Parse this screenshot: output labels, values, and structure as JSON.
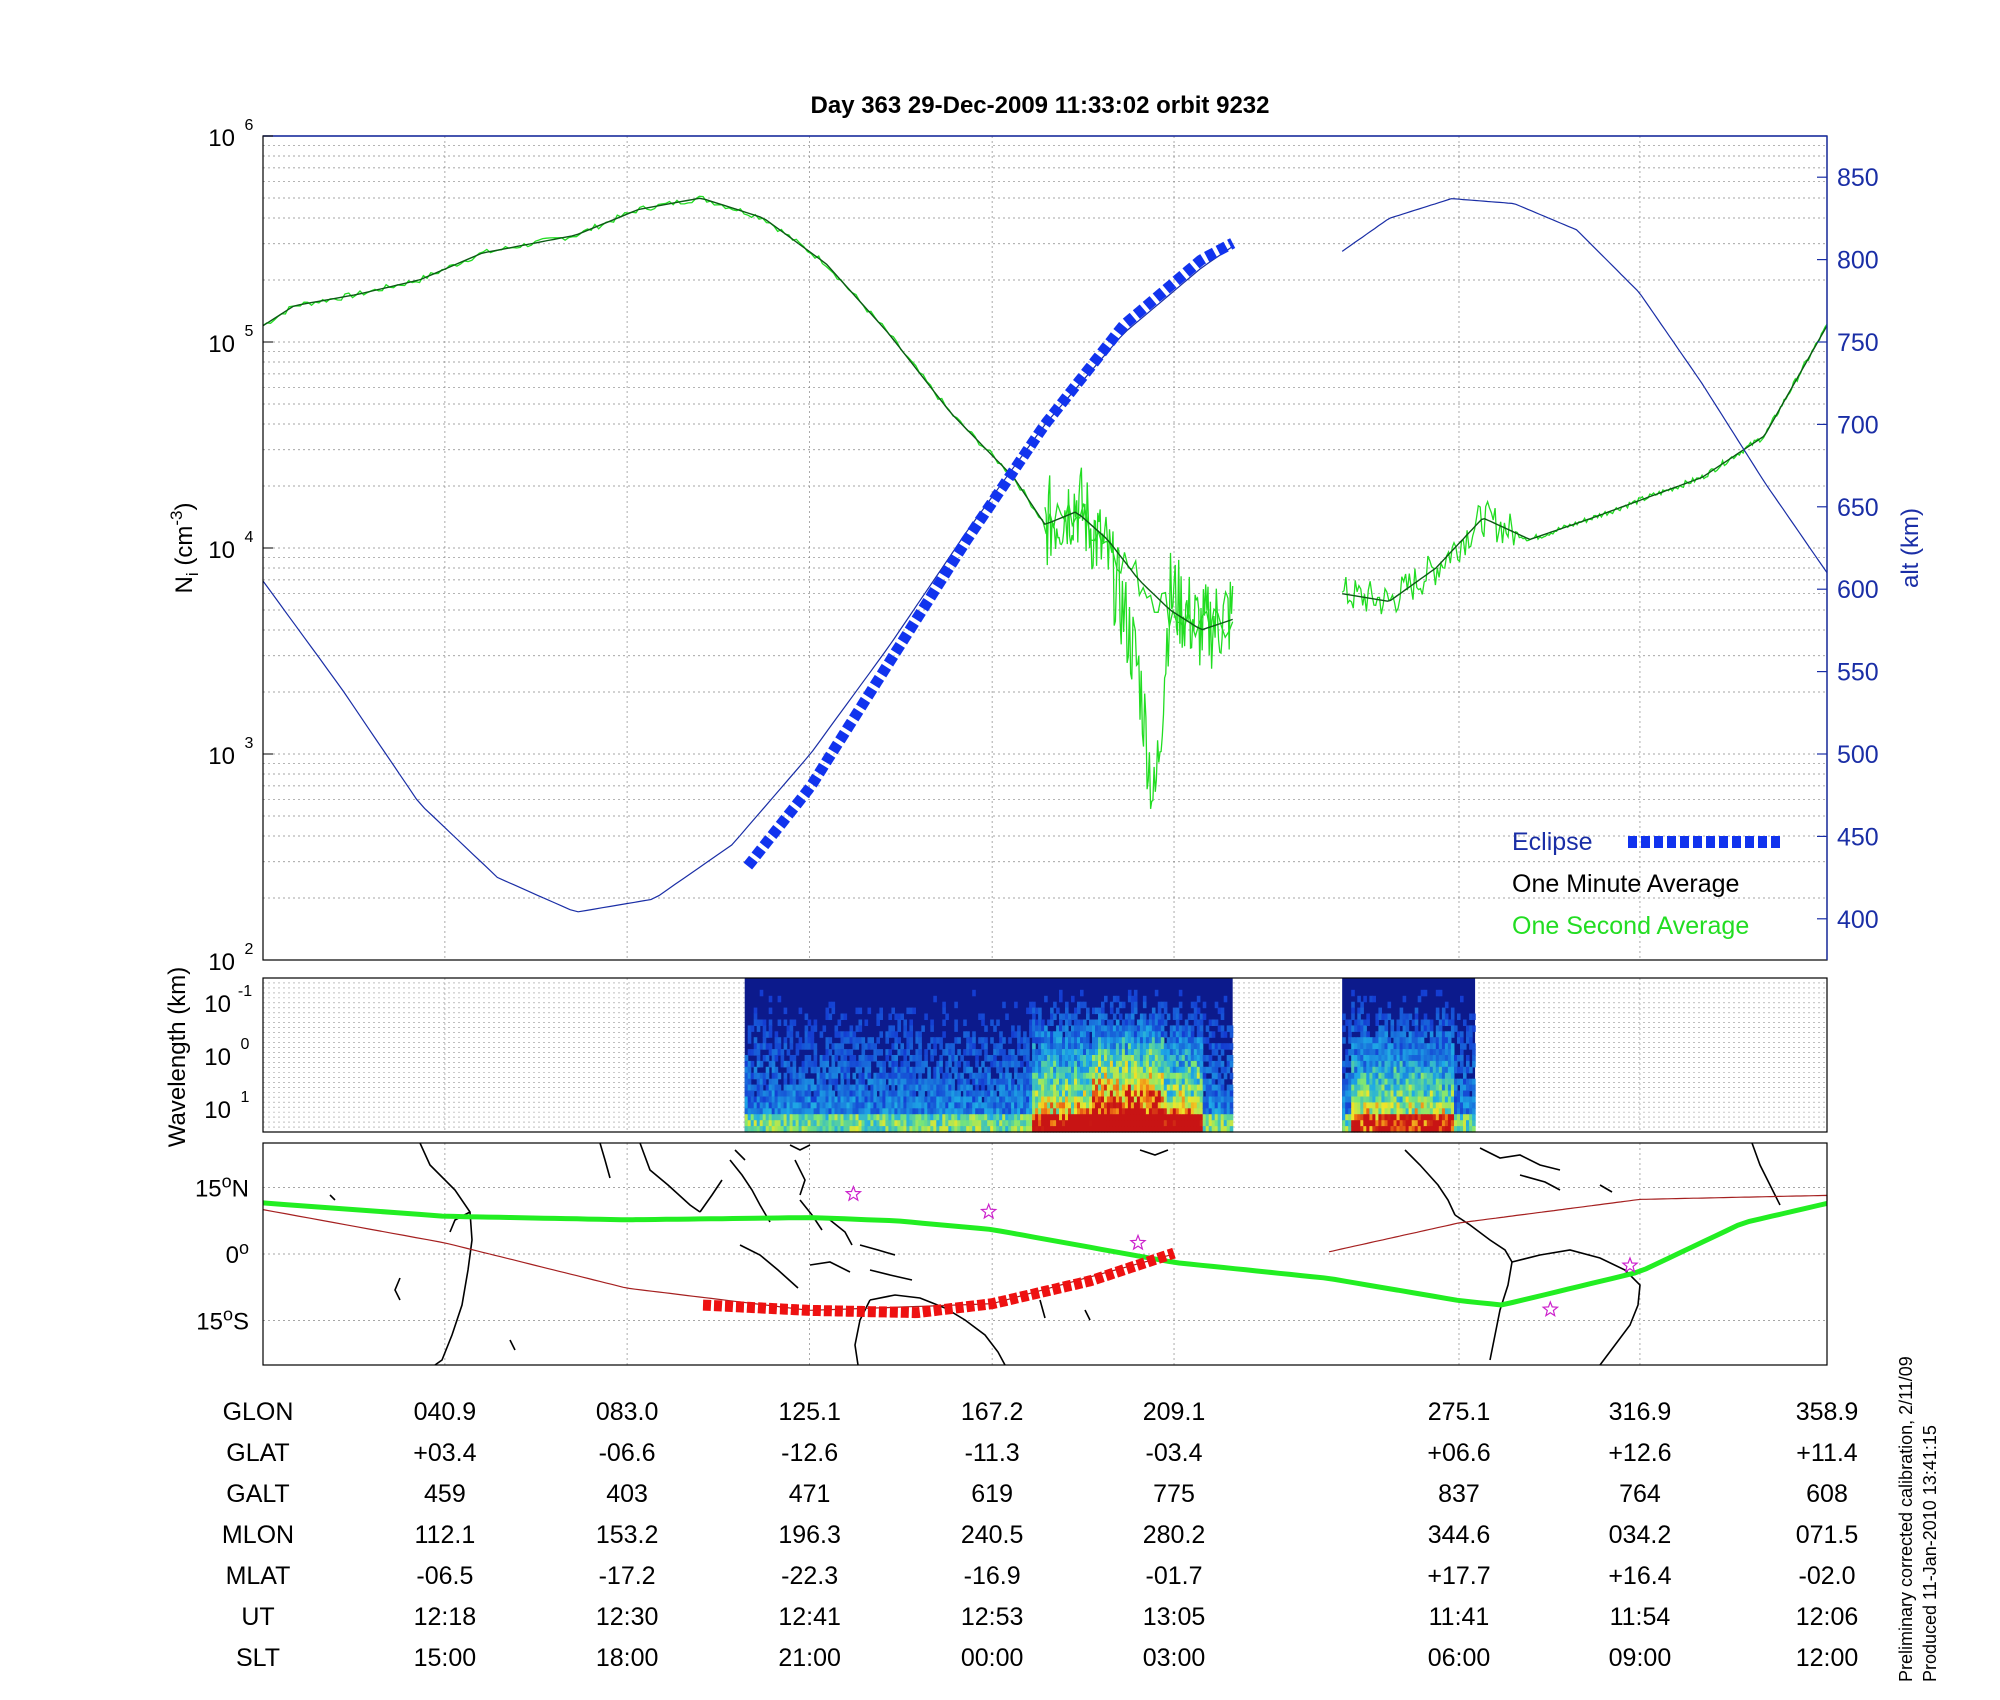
{
  "title": "Day 363  29-Dec-2009 11:33:02   orbit 9232",
  "colors": {
    "density_1s": "#22dd22",
    "density_1min": "#0b5a14",
    "altitude": "#1a2ea6",
    "eclipse": "#1133ee",
    "ground_track": "#22ee22",
    "magnetic_equator": "#a52020",
    "map_eclipse": "#ee1111",
    "stars": "#cc22cc",
    "axis_blue": "#1a2ea6"
  },
  "panel_top": {
    "ylabel_left": "N",
    "ylabel_left_sub": "i",
    "ylabel_left_unit": " (cm",
    "ylabel_left_exp": "-3",
    "ylabel_left_close": ")",
    "ylabel_right": "alt (km)",
    "left_ticks": [
      {
        "base": "10",
        "exp": "2",
        "value": 100
      },
      {
        "base": "10",
        "exp": "3",
        "value": 1000
      },
      {
        "base": "10",
        "exp": "4",
        "value": 10000
      },
      {
        "base": "10",
        "exp": "5",
        "value": 100000
      },
      {
        "base": "10",
        "exp": "6",
        "value": 1000000
      }
    ],
    "right_ticks": [
      "400",
      "450",
      "500",
      "550",
      "600",
      "650",
      "700",
      "750",
      "800",
      "850"
    ],
    "right_range": [
      375,
      875
    ],
    "legend": {
      "eclipse": "Eclipse",
      "one_minute": "One Minute Average",
      "one_second": "One Second Average"
    }
  },
  "panel_mid": {
    "ylabel": "Wavelength (km)",
    "ticks": [
      {
        "base": "10",
        "exp": "-1"
      },
      {
        "base": "10",
        "exp": "0"
      },
      {
        "base": "10",
        "exp": "1"
      }
    ]
  },
  "panel_map": {
    "ticks": [
      {
        "deg": "15",
        "hemi": "N",
        "lat": 15
      },
      {
        "deg": "0",
        "hemi": "",
        "lat": 0
      },
      {
        "deg": "15",
        "hemi": "S",
        "lat": -15
      }
    ],
    "lat_range": [
      -25,
      25
    ],
    "stars_lon": [
      135.2,
      166.4,
      200.8,
      296.2,
      314.6
    ],
    "stars_lat": [
      13.5,
      9.5,
      2.5,
      -12.5,
      -2.6
    ]
  },
  "chart_data": [
    {
      "type": "line",
      "panel": "ion density and altitude",
      "x_axis": "GLON",
      "x_labels": [
        "040.9",
        "083.0",
        "125.1",
        "167.2",
        "209.1",
        "275.1",
        "316.9",
        "358.9"
      ],
      "y_scale_left": "log",
      "ylim_left": [
        100,
        1000000
      ],
      "ylim_right": [
        375,
        875
      ],
      "series": [
        {
          "name": "One Minute Average",
          "axis": "left",
          "x": [
            0.0,
            0.02,
            0.06,
            0.1,
            0.14,
            0.2,
            0.24,
            0.28,
            0.32,
            0.36,
            0.4,
            0.44,
            0.48,
            0.5,
            0.52,
            0.54,
            0.56,
            0.58,
            0.6,
            0.62
          ],
          "y": [
            120000,
            150000,
            170000,
            200000,
            270000,
            330000,
            440000,
            500000,
            400000,
            240000,
            110000,
            45000,
            22000,
            13000,
            15000,
            11000,
            7000,
            5000,
            4000,
            4500
          ]
        },
        {
          "name": "One Minute Average",
          "axis": "left",
          "x": [
            0.69,
            0.72,
            0.75,
            0.78,
            0.81,
            0.85,
            0.88,
            0.92,
            0.96,
            1.0
          ],
          "y": [
            6000,
            5500,
            8000,
            14000,
            11000,
            14000,
            17000,
            22000,
            35000,
            120000
          ]
        },
        {
          "name": "One Second Average",
          "axis": "left",
          "x": [
            0.5,
            0.52,
            0.54,
            0.55,
            0.56,
            0.57,
            0.58,
            0.6,
            0.62
          ],
          "y": [
            13000,
            17000,
            9000,
            5000,
            2500,
            550,
            6000,
            4000,
            4800
          ]
        },
        {
          "name": "altitude",
          "axis": "right",
          "x": [
            0.0,
            0.05,
            0.1,
            0.15,
            0.2,
            0.25,
            0.3,
            0.35,
            0.4,
            0.45,
            0.5,
            0.55,
            0.6,
            0.62
          ],
          "y": [
            605,
            540,
            470,
            425,
            404,
            412,
            445,
            500,
            565,
            635,
            700,
            755,
            795,
            808
          ]
        },
        {
          "name": "altitude",
          "axis": "right",
          "x": [
            0.69,
            0.72,
            0.76,
            0.8,
            0.84,
            0.88,
            0.92,
            0.96,
            1.0
          ],
          "y": [
            805,
            825,
            837,
            834,
            818,
            780,
            725,
            665,
            610
          ]
        },
        {
          "name": "Eclipse",
          "axis": "right",
          "x": [
            0.31,
            0.35,
            0.4,
            0.45,
            0.5,
            0.55,
            0.6,
            0.62
          ],
          "y": [
            432,
            480,
            555,
            630,
            700,
            760,
            800,
            810
          ]
        }
      ]
    },
    {
      "type": "heatmap",
      "panel": "wavelength spectrogram",
      "ylabel": "Wavelength (km)",
      "segments_x": [
        [
          0.308,
          0.62
        ],
        [
          0.69,
          0.775
        ]
      ]
    },
    {
      "type": "line",
      "panel": "ground track map",
      "x_axis": "GLON",
      "ylim": [
        -25,
        25
      ],
      "series": [
        {
          "name": "ground track",
          "lon": [
            20,
            40.9,
            83.0,
            125.1,
            145,
            167.2,
            209.1,
            245,
            275.1,
            285,
            316.9,
            340,
            358.9,
            380
          ],
          "lat": [
            11.5,
            8.5,
            7.7,
            8.2,
            7.5,
            5.5,
            -1.9,
            -5.5,
            -10.5,
            -11.5,
            -4.0,
            7.0,
            11.4,
            11.4
          ]
        },
        {
          "name": "magnetic equator",
          "lon": [
            20,
            40.9,
            83.0,
            125.1,
            167.2,
            209.1
          ],
          "lat": [
            10,
            2.5,
            -7.7,
            -12.7,
            -11.2,
            0
          ]
        },
        {
          "name": "magnetic equator",
          "lon": [
            245,
            275.1,
            316.9,
            358.9,
            380
          ],
          "lat": [
            0.5,
            7.0,
            12.3,
            13.2,
            12.0
          ]
        },
        {
          "name": "Eclipse",
          "lon": [
            100.5,
            125.1,
            150,
            167.2,
            190,
            209.1
          ],
          "lat": [
            -11.5,
            -12.7,
            -13.2,
            -11.2,
            -6.0,
            0.2
          ]
        }
      ]
    }
  ],
  "table": {
    "rows": [
      {
        "label": "GLON",
        "values": [
          "040.9",
          "083.0",
          "125.1",
          "167.2",
          "209.1",
          "275.1",
          "316.9",
          "358.9"
        ]
      },
      {
        "label": "GLAT",
        "values": [
          "+03.4",
          "-06.6",
          "-12.6",
          "-11.3",
          "-03.4",
          "+06.6",
          "+12.6",
          "+11.4"
        ]
      },
      {
        "label": "GALT",
        "values": [
          "459",
          "403",
          "471",
          "619",
          "775",
          "837",
          "764",
          "608"
        ]
      },
      {
        "label": "MLON",
        "values": [
          "112.1",
          "153.2",
          "196.3",
          "240.5",
          "280.2",
          "344.6",
          "034.2",
          "071.5"
        ]
      },
      {
        "label": "MLAT",
        "values": [
          "-06.5",
          "-17.2",
          "-22.3",
          "-16.9",
          "-01.7",
          "+17.7",
          "+16.4",
          "-02.0"
        ]
      },
      {
        "label": "UT",
        "values": [
          "12:18",
          "12:30",
          "12:41",
          "12:53",
          "13:05",
          "11:41",
          "11:54",
          "12:06"
        ]
      },
      {
        "label": "SLT",
        "values": [
          "15:00",
          "18:00",
          "21:00",
          "00:00",
          "03:00",
          "06:00",
          "09:00",
          "12:00"
        ]
      }
    ]
  },
  "footer": {
    "line1": "Preliminary corrected calibration, 2/11/09",
    "line2": "Produced 11-Jan-2010 13:41:15"
  }
}
